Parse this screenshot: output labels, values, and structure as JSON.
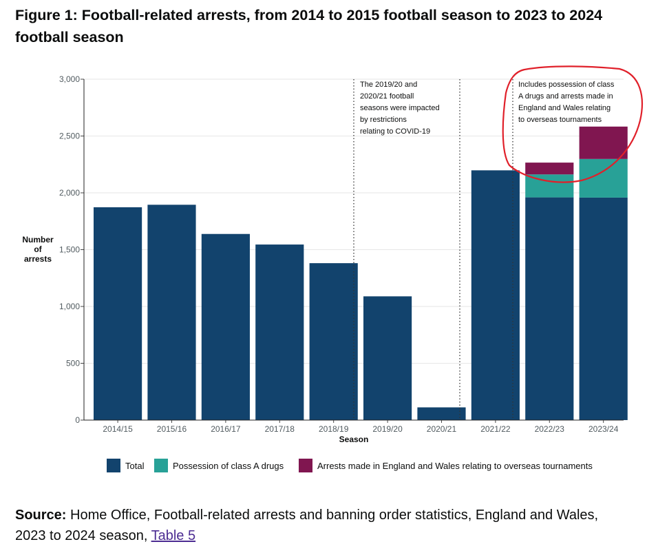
{
  "title": "Figure 1: Football-related arrests, from 2014 to 2015 football season to 2023 to 2024 football season",
  "chart_data": {
    "type": "bar",
    "stacked": true,
    "title": "Figure 1: Football-related arrests, from 2014 to 2015 football season to 2023 to 2024 football season",
    "xlabel": "Season",
    "ylabel": "Number of arrests",
    "ylim": [
      0,
      3000
    ],
    "yticks": [
      0,
      500,
      1000,
      1500,
      2000,
      2500,
      3000
    ],
    "ytick_labels": [
      "0",
      "500",
      "1,000",
      "1,500",
      "2,000",
      "2,500",
      "3,000"
    ],
    "categories": [
      "2014/15",
      "2015/16",
      "2016/17",
      "2017/18",
      "2018/19",
      "2019/20",
      "2020/21",
      "2021/22",
      "2022/23",
      "2023/24"
    ],
    "series": [
      {
        "name": "Total",
        "color": "#12436d",
        "values": [
          1873,
          1895,
          1638,
          1545,
          1381,
          1089,
          112,
          2198,
          1960,
          1958
        ]
      },
      {
        "name": "Possession of class A drugs",
        "color": "#28a197",
        "values": [
          0,
          0,
          0,
          0,
          0,
          0,
          0,
          0,
          202,
          340
        ]
      },
      {
        "name": "Arrests made in England and Wales relating to overseas tournaments",
        "color": "#801650",
        "values": [
          0,
          0,
          0,
          0,
          0,
          0,
          0,
          0,
          104,
          285
        ]
      }
    ],
    "annotations": [
      {
        "lines": [
          "The 2019/20 and",
          "2020/21 football",
          "seasons were impacted",
          "by restrictions",
          "relating to COVID-19"
        ]
      },
      {
        "lines": [
          "Includes possession of class",
          "A drugs and arrests made in",
          "England and Wales relating",
          "to overseas tournaments"
        ]
      }
    ],
    "highlight_color": "#e0202a",
    "legend_position": "bottom"
  },
  "source": {
    "label": "Source:",
    "text": " Home Office, Football-related arrests and banning order statistics, England and Wales, 2023 to 2024 season, ",
    "link": "Table 5"
  }
}
